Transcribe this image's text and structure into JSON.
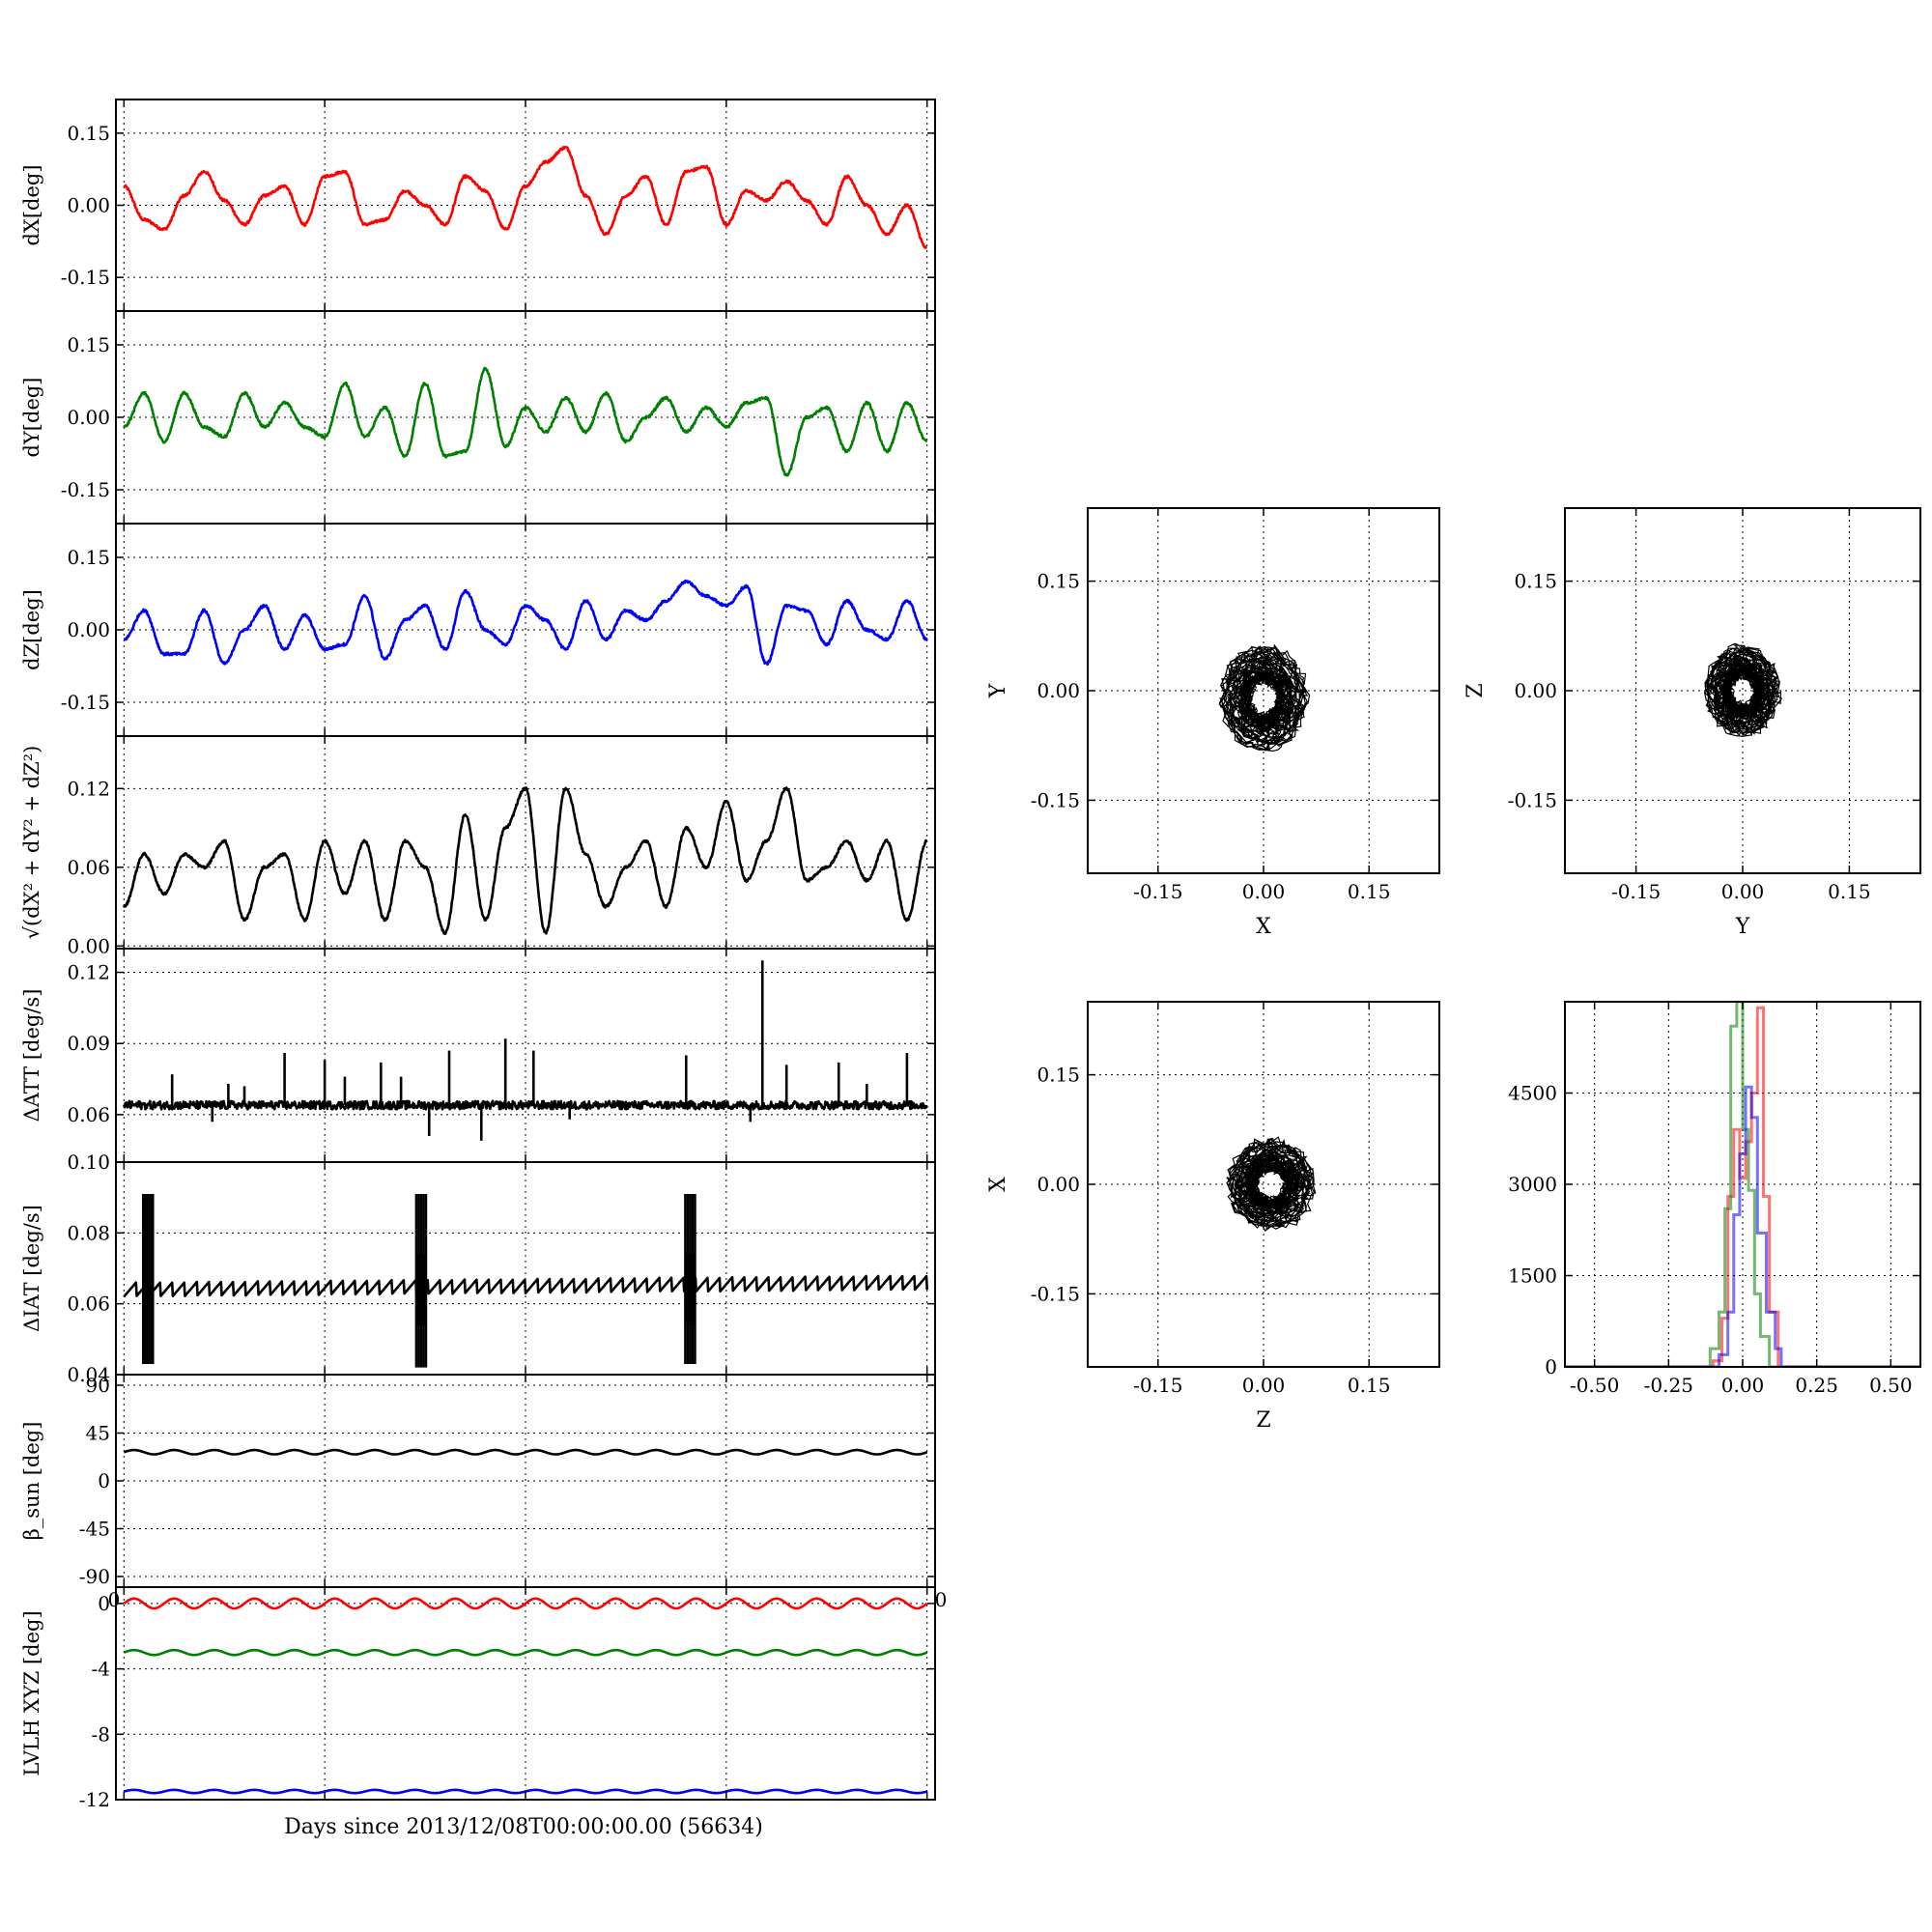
{
  "chart_data": [
    {
      "id": "dx",
      "type": "line",
      "ylabel": "dX[deg]",
      "ylim": [
        -0.22,
        0.22
      ],
      "yticks": [
        "0.15",
        "0.00",
        "-0.15"
      ],
      "ytick_values": [
        0.15,
        0.0,
        -0.15
      ],
      "xlim": [
        -0.2,
        20.2
      ],
      "grid": true,
      "series": [
        {
          "color": "#ff0000",
          "x": [
            0,
            0.5,
            1.0,
            1.5,
            2.0,
            2.5,
            3.0,
            3.5,
            4.0,
            4.5,
            5.0,
            5.5,
            6.0,
            6.5,
            7.0,
            7.5,
            8.0,
            8.5,
            9.0,
            9.5,
            10.0,
            10.5,
            11.0,
            11.5,
            12.0,
            12.5,
            13.0,
            13.5,
            14.0,
            14.5,
            15.0,
            15.5,
            16.0,
            16.5,
            17.0,
            17.5,
            18.0,
            18.5,
            19.0,
            19.5,
            20.0
          ],
          "values": [
            0.04,
            -0.03,
            -0.05,
            0.02,
            0.07,
            0.01,
            -0.04,
            0.02,
            0.04,
            -0.04,
            0.06,
            0.07,
            -0.04,
            -0.03,
            0.03,
            0.0,
            -0.04,
            0.06,
            0.03,
            -0.05,
            0.04,
            0.09,
            0.12,
            0.02,
            -0.06,
            0.02,
            0.06,
            -0.04,
            0.07,
            0.08,
            -0.04,
            0.03,
            0.01,
            0.05,
            0.01,
            -0.04,
            0.06,
            0.0,
            -0.06,
            0.0,
            -0.09
          ]
        }
      ]
    },
    {
      "id": "dy",
      "type": "line",
      "ylabel": "dY[deg]",
      "ylim": [
        -0.22,
        0.22
      ],
      "yticks": [
        "0.15",
        "0.00",
        "-0.15"
      ],
      "ytick_values": [
        0.15,
        0.0,
        -0.15
      ],
      "xlim": [
        -0.2,
        20.2
      ],
      "grid": true,
      "series": [
        {
          "color": "#008000",
          "x": [
            0,
            0.5,
            1.0,
            1.5,
            2.0,
            2.5,
            3.0,
            3.5,
            4.0,
            4.5,
            5.0,
            5.5,
            6.0,
            6.5,
            7.0,
            7.5,
            8.0,
            8.5,
            9.0,
            9.5,
            10.0,
            10.5,
            11.0,
            11.5,
            12.0,
            12.5,
            13.0,
            13.5,
            14.0,
            14.5,
            15.0,
            15.5,
            16.0,
            16.5,
            17.0,
            17.5,
            18.0,
            18.5,
            19.0,
            19.5,
            20.0
          ],
          "values": [
            -0.02,
            0.05,
            -0.05,
            0.05,
            -0.02,
            -0.04,
            0.05,
            -0.02,
            0.03,
            -0.02,
            -0.04,
            0.07,
            -0.04,
            0.02,
            -0.08,
            0.07,
            -0.08,
            -0.07,
            0.1,
            -0.06,
            0.02,
            -0.03,
            0.04,
            -0.03,
            0.05,
            -0.05,
            0.0,
            0.04,
            -0.03,
            0.02,
            -0.02,
            0.03,
            0.04,
            -0.12,
            0.0,
            0.02,
            -0.07,
            0.03,
            -0.07,
            0.03,
            -0.05
          ]
        }
      ]
    },
    {
      "id": "dz",
      "type": "line",
      "ylabel": "dZ[deg]",
      "ylim": [
        -0.22,
        0.22
      ],
      "yticks": [
        "0.15",
        "0.00",
        "-0.15"
      ],
      "ytick_values": [
        0.15,
        0.0,
        -0.15
      ],
      "xlim": [
        -0.2,
        20.2
      ],
      "grid": true,
      "series": [
        {
          "color": "#0000ff",
          "x": [
            0,
            0.5,
            1.0,
            1.5,
            2.0,
            2.5,
            3.0,
            3.5,
            4.0,
            4.5,
            5.0,
            5.5,
            6.0,
            6.5,
            7.0,
            7.5,
            8.0,
            8.5,
            9.0,
            9.5,
            10.0,
            10.5,
            11.0,
            11.5,
            12.0,
            12.5,
            13.0,
            13.5,
            14.0,
            14.5,
            15.0,
            15.5,
            16.0,
            16.5,
            17.0,
            17.5,
            18.0,
            18.5,
            19.0,
            19.5,
            20.0
          ],
          "values": [
            -0.02,
            0.04,
            -0.05,
            -0.05,
            0.04,
            -0.07,
            0.0,
            0.05,
            -0.04,
            0.03,
            -0.04,
            -0.03,
            0.07,
            -0.06,
            0.02,
            0.05,
            -0.04,
            0.08,
            0.0,
            -0.03,
            0.05,
            0.02,
            -0.04,
            0.06,
            -0.02,
            0.04,
            0.02,
            0.06,
            0.1,
            0.07,
            0.05,
            0.09,
            -0.07,
            0.05,
            0.04,
            -0.03,
            0.06,
            0.0,
            -0.02,
            0.06,
            -0.02
          ]
        }
      ]
    },
    {
      "id": "norm",
      "type": "line",
      "ylabel": "√(dX² + dY² + dZ²)",
      "ylim": [
        -0.002,
        0.16
      ],
      "yticks": [
        "0.12",
        "0.06",
        "0.00"
      ],
      "ytick_values": [
        0.12,
        0.06,
        0.0
      ],
      "xlim": [
        -0.2,
        20.2
      ],
      "grid": true,
      "series": [
        {
          "color": "#000000",
          "x": [
            0,
            0.5,
            1.0,
            1.5,
            2.0,
            2.5,
            3.0,
            3.5,
            4.0,
            4.5,
            5.0,
            5.5,
            6.0,
            6.5,
            7.0,
            7.5,
            8.0,
            8.5,
            9.0,
            9.5,
            10.0,
            10.5,
            11.0,
            11.5,
            12.0,
            12.5,
            13.0,
            13.5,
            14.0,
            14.5,
            15.0,
            15.5,
            16.0,
            16.5,
            17.0,
            17.5,
            18.0,
            18.5,
            19.0,
            19.5,
            20.0
          ],
          "values": [
            0.03,
            0.07,
            0.04,
            0.07,
            0.06,
            0.08,
            0.02,
            0.06,
            0.07,
            0.02,
            0.08,
            0.04,
            0.08,
            0.02,
            0.08,
            0.06,
            0.01,
            0.1,
            0.02,
            0.09,
            0.12,
            0.01,
            0.12,
            0.07,
            0.03,
            0.06,
            0.08,
            0.03,
            0.09,
            0.06,
            0.11,
            0.05,
            0.08,
            0.12,
            0.05,
            0.06,
            0.08,
            0.05,
            0.08,
            0.02,
            0.08
          ]
        }
      ]
    },
    {
      "id": "datt",
      "type": "line",
      "ylabel": "ΔATT [deg/s]",
      "ylim": [
        0.04,
        0.13
      ],
      "yticks": [
        "0.12",
        "0.09",
        "0.06"
      ],
      "ytick_values": [
        0.12,
        0.09,
        0.06
      ],
      "xlim": [
        -0.2,
        20.2
      ],
      "grid": true,
      "series": [
        {
          "color": "#000000",
          "baseline": 0.064,
          "x": [
            0,
            20
          ],
          "values": [
            0.064,
            0.064
          ]
        }
      ],
      "spikes": [
        {
          "x": 1.2,
          "y": 0.077
        },
        {
          "x": 2.2,
          "y": 0.057
        },
        {
          "x": 2.6,
          "y": 0.073
        },
        {
          "x": 3.0,
          "y": 0.072
        },
        {
          "x": 4.0,
          "y": 0.086
        },
        {
          "x": 5.0,
          "y": 0.083
        },
        {
          "x": 5.5,
          "y": 0.076
        },
        {
          "x": 6.4,
          "y": 0.082
        },
        {
          "x": 6.9,
          "y": 0.076
        },
        {
          "x": 7.6,
          "y": 0.051
        },
        {
          "x": 8.1,
          "y": 0.087
        },
        {
          "x": 8.9,
          "y": 0.049
        },
        {
          "x": 9.5,
          "y": 0.092
        },
        {
          "x": 10.2,
          "y": 0.087
        },
        {
          "x": 11.1,
          "y": 0.058
        },
        {
          "x": 14.0,
          "y": 0.085
        },
        {
          "x": 15.6,
          "y": 0.057
        },
        {
          "x": 15.9,
          "y": 0.125
        },
        {
          "x": 16.5,
          "y": 0.081
        },
        {
          "x": 17.8,
          "y": 0.082
        },
        {
          "x": 18.5,
          "y": 0.073
        },
        {
          "x": 19.5,
          "y": 0.086
        }
      ]
    },
    {
      "id": "diat",
      "type": "line",
      "ylabel": "ΔIAT [deg/s]",
      "ylim": [
        0.04,
        0.1
      ],
      "yticks": [
        "0.10",
        "0.08",
        "0.06",
        "0.04"
      ],
      "ytick_values": [
        0.1,
        0.08,
        0.06,
        0.04
      ],
      "xlim": [
        -0.2,
        20.2
      ],
      "grid": true,
      "series": [
        {
          "color": "#000000",
          "x": [
            0,
            20
          ],
          "values": [
            0.064,
            0.066
          ]
        }
      ],
      "bursts": [
        {
          "x": 0.6,
          "ymin": 0.043,
          "ymax": 0.091
        },
        {
          "x": 7.4,
          "ymin": 0.042,
          "ymax": 0.091
        },
        {
          "x": 14.1,
          "ymin": 0.043,
          "ymax": 0.091
        }
      ]
    },
    {
      "id": "beta",
      "type": "line",
      "ylabel": "β_sun [deg]",
      "ylim": [
        -100,
        100
      ],
      "yticks": [
        "90",
        "45",
        "0",
        "-45",
        "-90"
      ],
      "ytick_values": [
        90,
        45,
        0,
        -45,
        -90
      ],
      "xlim": [
        -0.2,
        20.2
      ],
      "grid": true,
      "corner_labels": [
        "0",
        "0"
      ],
      "series": [
        {
          "color": "#000000",
          "mean": 27,
          "amplitude": 2,
          "periods": 20,
          "x": [
            0,
            20
          ],
          "values": [
            27,
            27
          ]
        }
      ]
    },
    {
      "id": "lvlh",
      "type": "line",
      "ylabel": "LVLH XYZ [deg]",
      "xlabel": "Days since 2013/12/08T00:00:00.00 (56634)",
      "ylim": [
        -12,
        1
      ],
      "yticks": [
        "0",
        "-4",
        "-8",
        "-12"
      ],
      "ytick_values": [
        0,
        -4,
        -8,
        -12
      ],
      "xlim": [
        -0.2,
        20.2
      ],
      "grid": true,
      "series": [
        {
          "color": "#ff0000",
          "mean": 0.0,
          "amplitude": 0.3,
          "periods": 20,
          "x": [
            0,
            20
          ],
          "values": [
            0.0,
            0.0
          ]
        },
        {
          "color": "#008000",
          "mean": -3.0,
          "amplitude": 0.15,
          "periods": 20,
          "x": [
            0,
            20
          ],
          "values": [
            -3.0,
            -3.0
          ]
        },
        {
          "color": "#0000ff",
          "mean": -11.5,
          "amplitude": 0.1,
          "periods": 20,
          "x": [
            0,
            20
          ],
          "values": [
            -11.5,
            -11.5
          ]
        }
      ]
    },
    {
      "id": "xy",
      "type": "scatter",
      "xlabel": "X",
      "ylabel": "Y",
      "xlim": [
        -0.25,
        0.25
      ],
      "ylim": [
        -0.25,
        0.25
      ],
      "ticks": [
        "-0.15",
        "0.00",
        "0.15"
      ],
      "tick_values": [
        -0.15,
        0.0,
        0.15
      ],
      "grid": true,
      "cluster": {
        "cx": 0.0,
        "cy": -0.01,
        "rx": 0.06,
        "ry": 0.07,
        "color": "#000000"
      }
    },
    {
      "id": "yz",
      "type": "scatter",
      "xlabel": "Y",
      "ylabel": "Z",
      "xlim": [
        -0.25,
        0.25
      ],
      "ylim": [
        -0.25,
        0.25
      ],
      "ticks": [
        "-0.15",
        "0.00",
        "0.15"
      ],
      "tick_values": [
        -0.15,
        0.0,
        0.15
      ],
      "grid": true,
      "cluster": {
        "cx": 0.0,
        "cy": 0.0,
        "rx": 0.05,
        "ry": 0.06,
        "color": "#000000"
      }
    },
    {
      "id": "zx",
      "type": "scatter",
      "xlabel": "Z",
      "ylabel": "X",
      "xlim": [
        -0.25,
        0.25
      ],
      "ylim": [
        -0.25,
        0.25
      ],
      "ticks": [
        "-0.15",
        "0.00",
        "0.15"
      ],
      "tick_values": [
        -0.15,
        0.0,
        0.15
      ],
      "grid": true,
      "cluster": {
        "cx": 0.01,
        "cy": 0.0,
        "rx": 0.06,
        "ry": 0.06,
        "color": "#000000"
      }
    },
    {
      "id": "hist",
      "type": "line",
      "xlim": [
        -0.6,
        0.6
      ],
      "ylim": [
        0,
        6000
      ],
      "xticks": [
        "-0.50",
        "-0.25",
        "0.00",
        "0.25",
        "0.50"
      ],
      "xtick_values": [
        -0.5,
        -0.25,
        0.0,
        0.25,
        0.5
      ],
      "yticks": [
        "4500",
        "3000",
        "1500",
        "0"
      ],
      "ytick_values": [
        4500,
        3000,
        1500,
        0
      ],
      "grid": true,
      "series": [
        {
          "color": "#ff0000",
          "opacity": 0.55,
          "x": [
            -0.6,
            -0.15,
            -0.1,
            -0.07,
            -0.05,
            -0.03,
            -0.01,
            0.01,
            0.03,
            0.05,
            0.07,
            0.09,
            0.12,
            0.6
          ],
          "values": [
            0,
            0,
            100,
            800,
            2800,
            3900,
            3100,
            3700,
            4500,
            5900,
            2800,
            900,
            0,
            0
          ]
        },
        {
          "color": "#008000",
          "opacity": 0.55,
          "x": [
            -0.6,
            -0.15,
            -0.11,
            -0.08,
            -0.06,
            -0.04,
            -0.02,
            0.0,
            0.02,
            0.04,
            0.06,
            0.09,
            0.6
          ],
          "values": [
            0,
            0,
            300,
            900,
            2600,
            5600,
            6000,
            3900,
            2900,
            1200,
            500,
            0,
            0
          ]
        },
        {
          "color": "#0000ff",
          "opacity": 0.55,
          "x": [
            -0.6,
            -0.12,
            -0.08,
            -0.05,
            -0.03,
            -0.01,
            0.01,
            0.03,
            0.05,
            0.08,
            0.11,
            0.13,
            0.6
          ],
          "values": [
            0,
            0,
            200,
            900,
            2500,
            3500,
            4600,
            4100,
            2200,
            900,
            300,
            0,
            0
          ]
        }
      ]
    }
  ]
}
